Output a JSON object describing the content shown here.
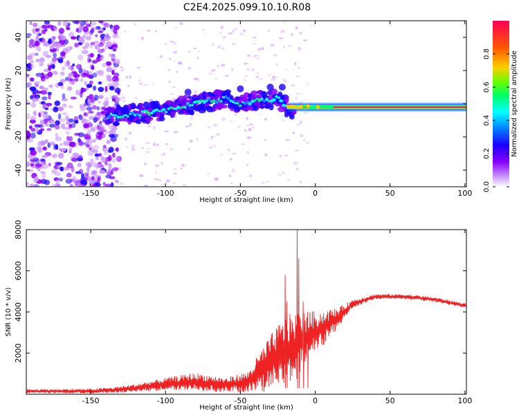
{
  "title": "C2E4.2025.099.10.10.R08",
  "colors": {
    "snr_line": "#ee2222",
    "spectrogram_ramp": [
      "#ffffff",
      "#cc99ff",
      "#8800ff",
      "#1a00ff",
      "#0099ff",
      "#00ffff",
      "#00ff66",
      "#66ff00",
      "#ffcc00",
      "#ff5500",
      "#ff0055"
    ]
  },
  "chart_data": [
    {
      "type": "heatmap",
      "name": "spectrogram",
      "xlabel": "Height of straight line (km)",
      "ylabel": "Frequency (Hz)",
      "xlim": [
        -193,
        101
      ],
      "ylim": [
        -50,
        50
      ],
      "xticks": [
        -150,
        -100,
        -50,
        0,
        50,
        100
      ],
      "yticks": [
        -40,
        -20,
        0,
        20,
        40
      ],
      "colorbar": {
        "label": "Normalized spectral amplitude",
        "range": [
          0,
          1
        ],
        "ticks": [
          0.0,
          0.2,
          0.4,
          0.6,
          0.8
        ]
      },
      "signal_track": [
        {
          "x": -140,
          "y": -8
        },
        {
          "x": -120,
          "y": -6
        },
        {
          "x": -100,
          "y": -4
        },
        {
          "x": -80,
          "y": 0
        },
        {
          "x": -60,
          "y": 3
        },
        {
          "x": -50,
          "y": 0
        },
        {
          "x": -40,
          "y": 2
        },
        {
          "x": -25,
          "y": 3
        },
        {
          "x": -18,
          "y": -4
        },
        {
          "x": 0,
          "y": -3
        },
        {
          "x": 12,
          "y": -2
        },
        {
          "x": 50,
          "y": -2
        },
        {
          "x": 100,
          "y": -2
        }
      ],
      "noise_region_x": [
        -193,
        -135
      ]
    },
    {
      "type": "line",
      "name": "snr",
      "xlabel": "Height of straight line (km)",
      "ylabel": "SNR (10 * v/v)",
      "xlim": [
        -193,
        101
      ],
      "ylim": [
        0,
        8000
      ],
      "xticks": [
        -150,
        -100,
        -50,
        0,
        50,
        100
      ],
      "yticks": [
        2000,
        4000,
        6000,
        8000
      ],
      "envelope": [
        {
          "x": -193,
          "mean": 150,
          "noise": 100
        },
        {
          "x": -150,
          "mean": 150,
          "noise": 120
        },
        {
          "x": -135,
          "mean": 200,
          "noise": 150
        },
        {
          "x": -120,
          "mean": 300,
          "noise": 200
        },
        {
          "x": -100,
          "mean": 500,
          "noise": 300
        },
        {
          "x": -80,
          "mean": 600,
          "noise": 450
        },
        {
          "x": -60,
          "mean": 450,
          "noise": 350
        },
        {
          "x": -45,
          "mean": 600,
          "noise": 500
        },
        {
          "x": -35,
          "mean": 1200,
          "noise": 1100
        },
        {
          "x": -25,
          "mean": 1900,
          "noise": 1500
        },
        {
          "x": -15,
          "mean": 2200,
          "noise": 1800
        },
        {
          "x": -5,
          "mean": 2800,
          "noise": 1200
        },
        {
          "x": 5,
          "mean": 3200,
          "noise": 900
        },
        {
          "x": 15,
          "mean": 3700,
          "noise": 500
        },
        {
          "x": 25,
          "mean": 4400,
          "noise": 200
        },
        {
          "x": 40,
          "mean": 4750,
          "noise": 120
        },
        {
          "x": 60,
          "mean": 4750,
          "noise": 120
        },
        {
          "x": 80,
          "mean": 4600,
          "noise": 120
        },
        {
          "x": 101,
          "mean": 4300,
          "noise": 120
        }
      ],
      "spikes": [
        {
          "x": -20,
          "y": 5800
        },
        {
          "x": -19,
          "y": 4500
        },
        {
          "x": -12,
          "y": 8000
        },
        {
          "x": -11,
          "y": 6600
        },
        {
          "x": -8,
          "y": 4500
        },
        {
          "x": -5,
          "y": 4000
        }
      ]
    }
  ]
}
